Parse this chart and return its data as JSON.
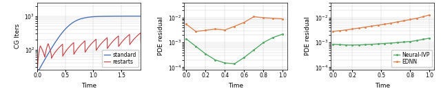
{
  "fig_width": 6.4,
  "fig_height": 1.36,
  "dpi": 100,
  "panel1": {
    "xlabel": "Time",
    "ylabel": "CG Iters",
    "xlim": [
      0.0,
      1.85
    ],
    "ylim_log": [
      25,
      2500
    ],
    "yticks": [
      100,
      1000
    ],
    "xticks": [
      0.0,
      0.5,
      1.0,
      1.5
    ],
    "standard_color": "#4c72b0",
    "restarts_color": "#c44e52",
    "legend_labels": [
      "standard",
      "restarts"
    ]
  },
  "panel2": {
    "xlabel": "Time",
    "ylabel": "PDE residual",
    "xlim": [
      -0.02,
      1.05
    ],
    "ylim_log": [
      8e-05,
      0.04
    ],
    "xticks": [
      0.0,
      0.2,
      0.4,
      0.6,
      0.8,
      1.0
    ],
    "neural_color": "#55a868",
    "ednn_color": "#dd8452",
    "neural_x": [
      0.0,
      0.1,
      0.2,
      0.3,
      0.4,
      0.5,
      0.6,
      0.7,
      0.8,
      0.9,
      1.0
    ],
    "neural_y": [
      0.0014,
      0.0007,
      0.00035,
      0.0002,
      0.00015,
      0.00014,
      0.00025,
      0.0005,
      0.001,
      0.0016,
      0.0022
    ],
    "ednn_x": [
      0.0,
      0.1,
      0.2,
      0.3,
      0.4,
      0.5,
      0.6,
      0.7,
      0.8,
      0.9,
      1.0
    ],
    "ednn_y": [
      0.0055,
      0.0028,
      0.0031,
      0.0035,
      0.0032,
      0.0045,
      0.0065,
      0.011,
      0.01,
      0.0095,
      0.009
    ]
  },
  "panel3": {
    "xlabel": "Time",
    "ylabel": "PDE residual",
    "xlim": [
      -0.02,
      1.05
    ],
    "ylim_log": [
      8e-05,
      0.04
    ],
    "xticks": [
      0.0,
      0.2,
      0.5,
      0.8,
      1.0
    ],
    "neural_color": "#55a868",
    "ednn_color": "#dd8452",
    "neural_x": [
      0.0,
      0.067,
      0.133,
      0.2,
      0.267,
      0.333,
      0.4,
      0.467,
      0.533,
      0.6,
      0.667,
      0.733,
      0.8,
      0.867,
      0.933,
      1.0
    ],
    "neural_y": [
      0.00085,
      0.00082,
      0.0008,
      0.00079,
      0.0008,
      0.00082,
      0.00085,
      0.00088,
      0.00092,
      0.00095,
      0.001,
      0.00105,
      0.0011,
      0.0012,
      0.00135,
      0.0015
    ],
    "ednn_x": [
      0.0,
      0.067,
      0.133,
      0.2,
      0.267,
      0.333,
      0.4,
      0.467,
      0.533,
      0.6,
      0.667,
      0.733,
      0.8,
      0.867,
      0.933,
      1.0
    ],
    "ednn_y": [
      0.0028,
      0.003,
      0.0032,
      0.0035,
      0.0038,
      0.0042,
      0.0046,
      0.005,
      0.0055,
      0.006,
      0.0068,
      0.0075,
      0.0085,
      0.0095,
      0.011,
      0.013
    ],
    "legend_labels": [
      "Neural-IVP",
      "EDNN"
    ]
  }
}
